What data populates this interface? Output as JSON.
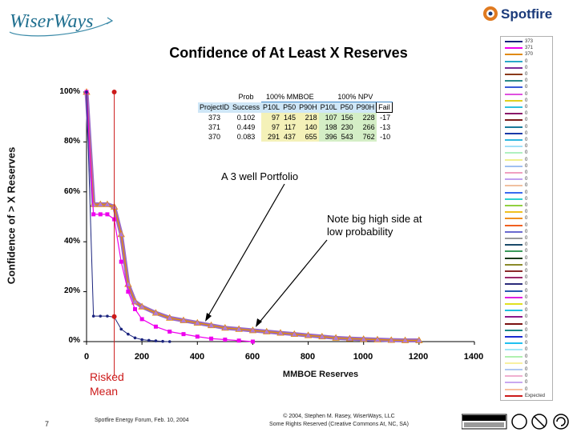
{
  "brand": {
    "left_logo": "WiserWays",
    "right_logo": "Spotfire"
  },
  "chart_data": {
    "type": "line",
    "title": "Confidence of At Least X Reserves",
    "xlabel": "MMBOE Reserves",
    "ylabel": "Confidence of > X Reserves",
    "xlim": [
      0,
      1400
    ],
    "ylim": [
      0,
      100
    ],
    "x_ticks": [
      "0",
      "200",
      "400",
      "600",
      "800",
      "1000",
      "1200",
      "1400"
    ],
    "y_ticks": [
      "0%",
      "20%",
      "40%",
      "60%",
      "80%",
      "100%"
    ],
    "grid": false,
    "legend_position": "right",
    "series": [
      {
        "name": "373",
        "color": "#1a237e",
        "x": [
          0,
          25,
          50,
          75,
          100,
          125,
          150,
          175,
          200,
          225,
          250,
          275,
          300
        ],
        "y": [
          100,
          10.2,
          10.2,
          10.2,
          9.8,
          5,
          3,
          1.5,
          0.8,
          0.5,
          0.3,
          0.1,
          0
        ]
      },
      {
        "name": "371",
        "color": "#ee00ee",
        "x": [
          0,
          25,
          50,
          75,
          100,
          125,
          150,
          175,
          200,
          250,
          300,
          350,
          400,
          450,
          500,
          550,
          600
        ],
        "y": [
          100,
          51,
          51,
          51,
          49,
          32,
          20,
          13,
          9,
          6,
          4,
          3,
          2,
          1.2,
          0.8,
          0.4,
          0
        ]
      },
      {
        "name": "370",
        "color": "#e08a10",
        "x": [
          0,
          25,
          50,
          75,
          100,
          125,
          150,
          175,
          200,
          250,
          300,
          350,
          400,
          450,
          500,
          550,
          600,
          650,
          700,
          750,
          800,
          850,
          900,
          950,
          1000,
          1050,
          1100,
          1150,
          1200
        ],
        "y": [
          100,
          55,
          55,
          55,
          54,
          43,
          23,
          16,
          14,
          11.5,
          9.5,
          8.5,
          7.5,
          6.5,
          5.5,
          5,
          4.5,
          4,
          3.5,
          3,
          2.5,
          2,
          1.5,
          1.2,
          1,
          0.8,
          0.6,
          0.5,
          0.5
        ]
      },
      {
        "name": "Expected",
        "color": "#cc1a1a",
        "vertical_at_x": 100
      }
    ],
    "table": {
      "header_top": [
        "Prob",
        "100% MMBOE",
        "100% NPV"
      ],
      "header": [
        "ProjectID",
        "Success",
        "P10L",
        "P50",
        "P90H",
        "P10L",
        "P50",
        "P90H",
        "Fail"
      ],
      "rows": [
        [
          "373",
          "0.102",
          "97",
          "145",
          "218",
          "107",
          "156",
          "228",
          "-17"
        ],
        [
          "371",
          "0.449",
          "97",
          "117",
          "140",
          "198",
          "230",
          "266",
          "-13"
        ],
        [
          "370",
          "0.083",
          "291",
          "437",
          "655",
          "396",
          "543",
          "762",
          "-10"
        ]
      ]
    },
    "annotations": [
      "A 3 well Portfolio",
      "Note big high side at low probability",
      "Risked Mean"
    ]
  },
  "legend_items": [
    {
      "label": "373",
      "color": "#1a237e"
    },
    {
      "label": "371",
      "color": "#ee00ee"
    },
    {
      "label": "370",
      "color": "#e08a10"
    },
    {
      "label": "0",
      "color": "#2aa8c8"
    },
    {
      "label": "0",
      "color": "#7a2a9a"
    },
    {
      "label": "0",
      "color": "#8a3a1a"
    },
    {
      "label": "0",
      "color": "#2a8a8a"
    },
    {
      "label": "0",
      "color": "#3a5ad8"
    },
    {
      "label": "0",
      "color": "#e050e0"
    },
    {
      "label": "0",
      "color": "#e0d020"
    },
    {
      "label": "0",
      "color": "#30c0e0"
    },
    {
      "label": "0",
      "color": "#8a1a6a"
    },
    {
      "label": "0",
      "color": "#7a1a1a"
    },
    {
      "label": "0",
      "color": "#1a7a9a"
    },
    {
      "label": "0",
      "color": "#1a3aa8"
    },
    {
      "label": "0",
      "color": "#30b8e0"
    },
    {
      "label": "0",
      "color": "#a0e0f8"
    },
    {
      "label": "0",
      "color": "#b0f0c0"
    },
    {
      "label": "0",
      "color": "#f0f090"
    },
    {
      "label": "0",
      "color": "#a0c0f0"
    },
    {
      "label": "0",
      "color": "#f0a0c0"
    },
    {
      "label": "0",
      "color": "#c0a0f0"
    },
    {
      "label": "0",
      "color": "#f0c0a0"
    },
    {
      "label": "0",
      "color": "#3a6af0"
    },
    {
      "label": "0",
      "color": "#30d0d0"
    },
    {
      "label": "0",
      "color": "#90d040"
    },
    {
      "label": "0",
      "color": "#f0c020"
    },
    {
      "label": "0",
      "color": "#f09020"
    },
    {
      "label": "0",
      "color": "#f06020"
    },
    {
      "label": "0",
      "color": "#6a6ad0"
    },
    {
      "label": "0",
      "color": "#9a9a9a"
    },
    {
      "label": "0",
      "color": "#1a4a6a"
    },
    {
      "label": "0",
      "color": "#3a9a5a"
    },
    {
      "label": "0",
      "color": "#1a3a1a"
    },
    {
      "label": "0",
      "color": "#8a8a2a"
    },
    {
      "label": "0",
      "color": "#8a2a2a"
    },
    {
      "label": "0",
      "color": "#9a2a6a"
    },
    {
      "label": "0",
      "color": "#2a2a7a"
    },
    {
      "label": "0",
      "color": "#2a5ab0"
    },
    {
      "label": "0",
      "color": "#e020e0"
    },
    {
      "label": "0",
      "color": "#e0e020"
    },
    {
      "label": "0",
      "color": "#20c0e0"
    },
    {
      "label": "0",
      "color": "#8a1a8a"
    },
    {
      "label": "0",
      "color": "#7a1010"
    },
    {
      "label": "0",
      "color": "#1a8a8a"
    },
    {
      "label": "0",
      "color": "#1a2ad0"
    },
    {
      "label": "0",
      "color": "#20c0f0"
    },
    {
      "label": "0",
      "color": "#a0e8f8"
    },
    {
      "label": "0",
      "color": "#b0f0b0"
    },
    {
      "label": "0",
      "color": "#f8f0a0"
    },
    {
      "label": "0",
      "color": "#b0c8f0"
    },
    {
      "label": "0",
      "color": "#f0b0d0"
    },
    {
      "label": "0",
      "color": "#c8a8f0"
    },
    {
      "label": "0",
      "color": "#f8c0a0"
    },
    {
      "label": "Expected",
      "color": "#cc1a1a"
    }
  ],
  "footer": {
    "page_number": "7",
    "event": "Spotfire Energy Forum, Feb. 10, 2004",
    "copyright_line1": "© 2004, Stephen M. Rasey, WiserWays, LLC",
    "copyright_line2": "Some Rights Reserved (Creative Commons At, NC, SA)"
  }
}
